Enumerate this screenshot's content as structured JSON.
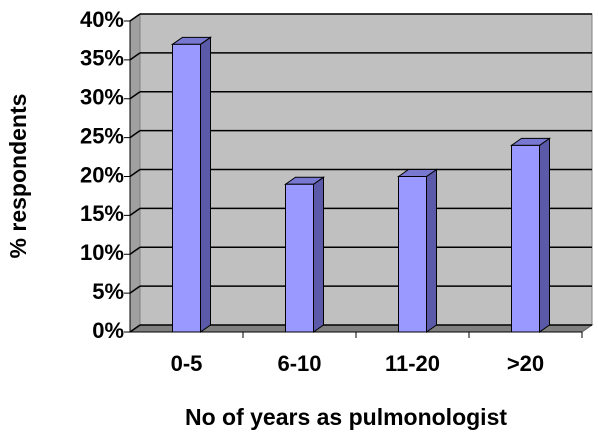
{
  "chart_data": {
    "type": "bar",
    "categories": [
      "0-5",
      "6-10",
      "11-20",
      ">20"
    ],
    "values": [
      37,
      19,
      20,
      24
    ],
    "color": "#9999ff",
    "ylim": [
      0,
      40
    ],
    "yticks": [
      {
        "value": 0,
        "label": "0%"
      },
      {
        "value": 5,
        "label": "5%"
      },
      {
        "value": 10,
        "label": "10%"
      },
      {
        "value": 15,
        "label": "15%"
      },
      {
        "value": 20,
        "label": "20%"
      },
      {
        "value": 25,
        "label": "25%"
      },
      {
        "value": 30,
        "label": "30%"
      },
      {
        "value": 35,
        "label": "35%"
      },
      {
        "value": 40,
        "label": "40%"
      }
    ],
    "grid": true,
    "xlabel": "No of years as pulmonologist",
    "ylabel": "% respondents"
  }
}
